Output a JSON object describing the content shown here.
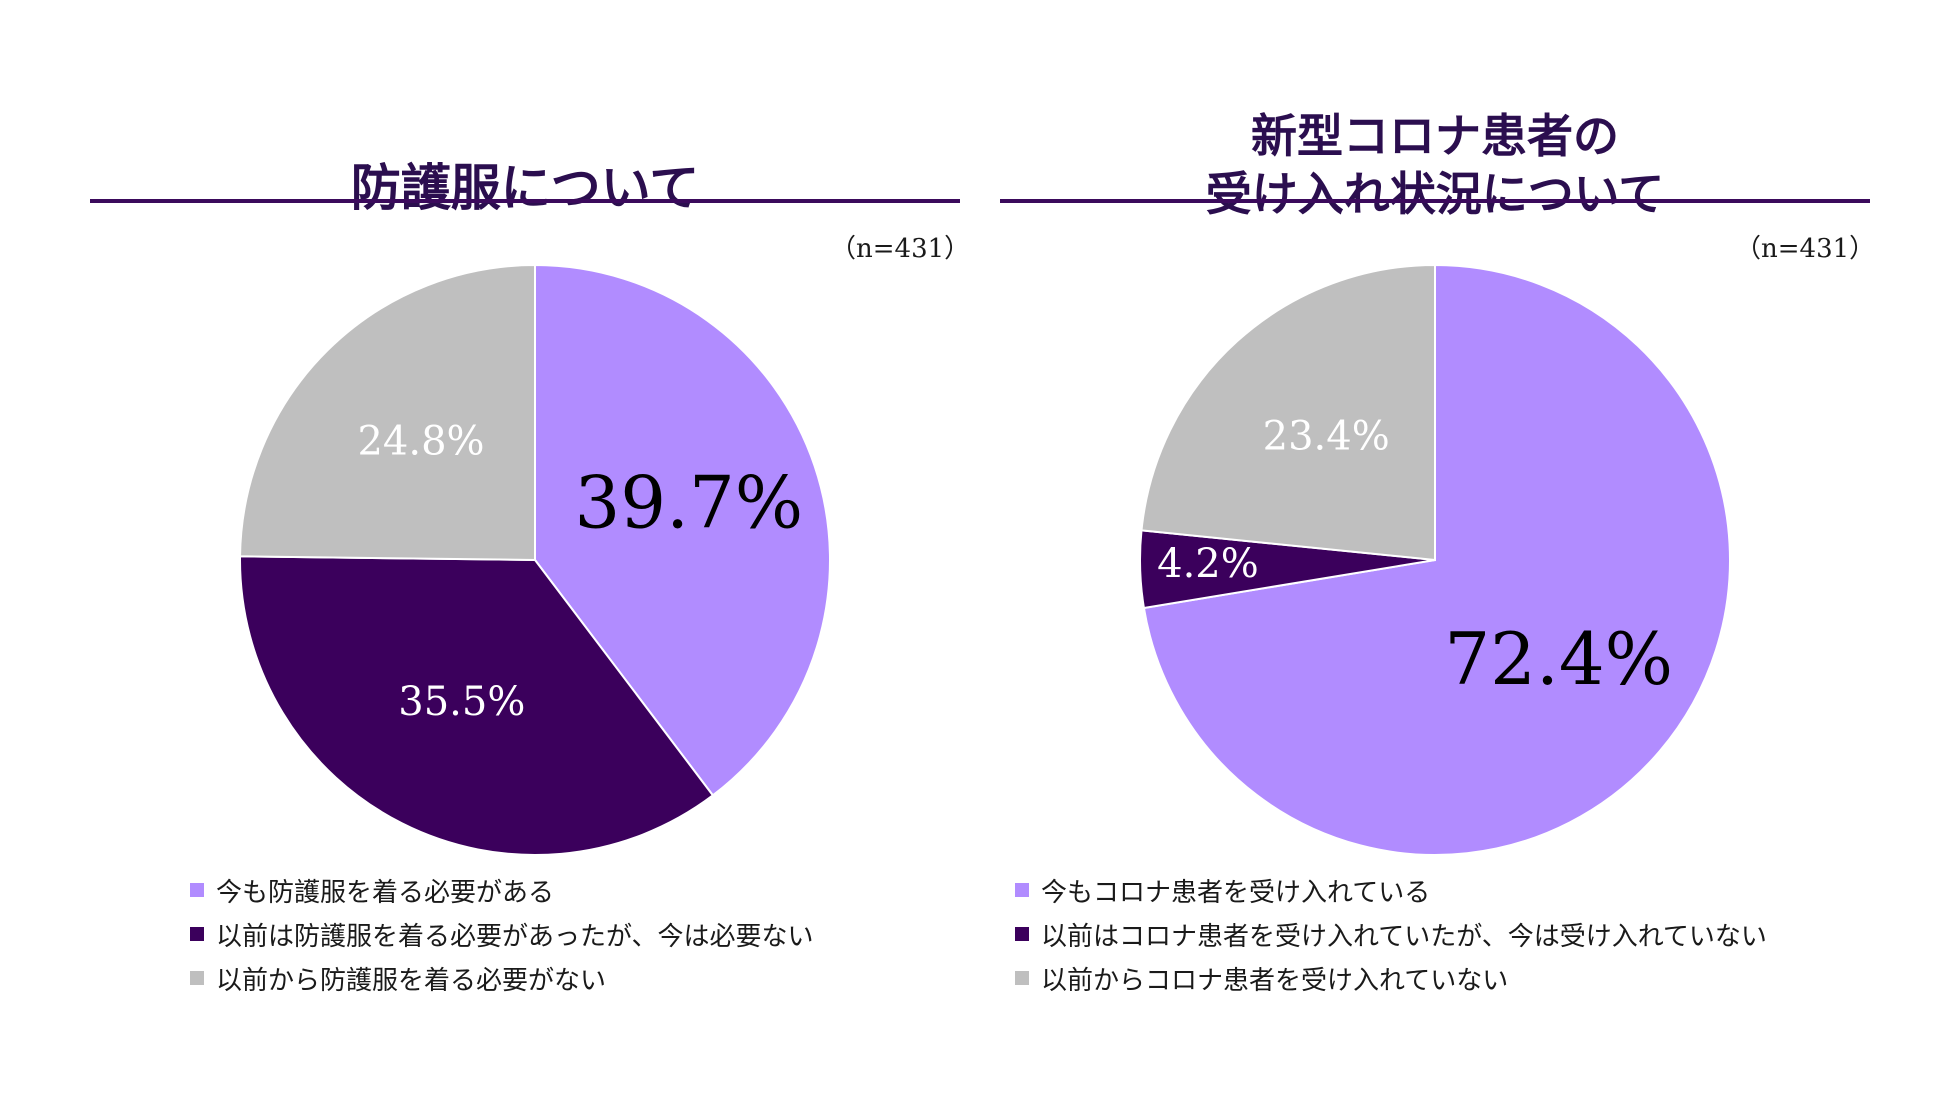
{
  "colors": {
    "light_purple": "#b18cff",
    "dark_purple": "#3b005c",
    "gray": "#bfbfbf",
    "title": "#2b0e4f",
    "rule": "#3b0a5c"
  },
  "chart_data": [
    {
      "type": "pie",
      "title": "防護服について",
      "sample_size": "（n=431）",
      "start": "top (12 o'clock)",
      "direction": "clockwise",
      "slices": [
        {
          "name": "今も防護服を着る必要がある",
          "value": 39.7,
          "label": "39.7%",
          "color": "#b18cff",
          "label_color": "#000000",
          "emphasis": true
        },
        {
          "name": "以前は防護服を着る必要があったが、今は必要ない",
          "value": 35.5,
          "label": "35.5%",
          "color": "#3b005c",
          "label_color": "#ffffff",
          "emphasis": false
        },
        {
          "name": "以前から防護服を着る必要がない",
          "value": 24.8,
          "label": "24.8%",
          "color": "#bfbfbf",
          "label_color": "#ffffff",
          "emphasis": false
        }
      ],
      "legend": [
        {
          "label": "今も防護服を着る必要がある",
          "color": "#b18cff"
        },
        {
          "label": "以前は防護服を着る必要があったが、今は必要ない",
          "color": "#3b005c"
        },
        {
          "label": "以前から防護服を着る必要がない",
          "color": "#bfbfbf"
        }
      ]
    },
    {
      "type": "pie",
      "title": "新型コロナ患者の\n受け入れ状況について",
      "sample_size": "（n=431）",
      "start": "top (12 o'clock)",
      "direction": "clockwise",
      "slices": [
        {
          "name": "今もコロナ患者を受け入れている",
          "value": 72.4,
          "label": "72.4%",
          "color": "#b18cff",
          "label_color": "#000000",
          "emphasis": true
        },
        {
          "name": "以前はコロナ患者を受け入れていたが、今は受け入れていない",
          "value": 4.2,
          "label": "4.2%",
          "color": "#3b005c",
          "label_color": "#ffffff",
          "emphasis": false
        },
        {
          "name": "以前からコロナ患者を受け入れていない",
          "value": 23.4,
          "label": "23.4%",
          "color": "#bfbfbf",
          "label_color": "#ffffff",
          "emphasis": false
        }
      ],
      "legend": [
        {
          "label": "今もコロナ患者を受け入れている",
          "color": "#b18cff"
        },
        {
          "label": "以前はコロナ患者を受け入れていたが、今は受け入れていない",
          "color": "#3b005c"
        },
        {
          "label": "以前からコロナ患者を受け入れていない",
          "color": "#bfbfbf"
        }
      ]
    }
  ]
}
